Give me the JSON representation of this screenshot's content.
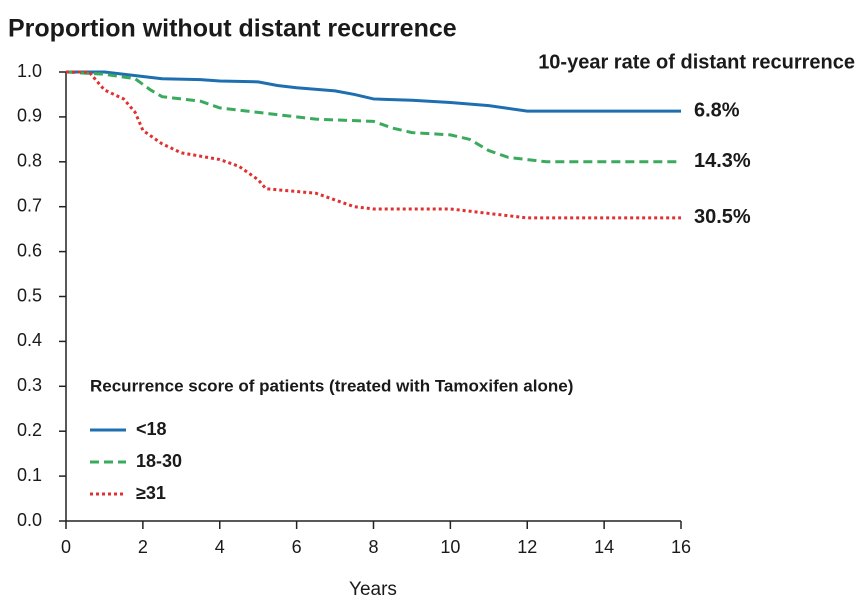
{
  "chart_data": {
    "type": "line",
    "title": "Proportion without distant recurrence",
    "annotation": "10-year rate of distant recurrence",
    "xlabel": "Years",
    "legend_title": "Recurrence score of patients (treated with Tamoxifen alone)",
    "xlim": [
      0,
      16
    ],
    "xticks": [
      0,
      2,
      4,
      6,
      8,
      10,
      12,
      14,
      16
    ],
    "ylim": [
      0,
      1
    ],
    "yticks": [
      {
        "value": 0,
        "label": "0.0"
      },
      0.1,
      0.2,
      0.3,
      0.4,
      0.5,
      0.6,
      0.7,
      0.8,
      0.9,
      {
        "value": 1,
        "label": "1.0"
      }
    ],
    "series": [
      {
        "name": "<18",
        "color": "#1f6fb0",
        "dash": "solid",
        "end_label": "6.8%",
        "x": [
          0,
          1,
          1.5,
          2,
          2.5,
          3.5,
          4,
          5,
          5.5,
          6,
          7,
          7.5,
          8,
          9,
          10,
          11,
          12,
          16
        ],
        "values": [
          1,
          1,
          0.995,
          0.99,
          0.985,
          0.983,
          0.98,
          0.978,
          0.97,
          0.965,
          0.958,
          0.95,
          0.94,
          0.937,
          0.932,
          0.925,
          0.913,
          0.913
        ]
      },
      {
        "name": "18-30",
        "color": "#3aaa5c",
        "dash": "dashed",
        "end_label": "14.3%",
        "x": [
          0,
          1,
          1.8,
          2.2,
          2.5,
          3.5,
          4,
          5,
          6,
          6.5,
          8,
          8.5,
          9,
          10,
          10.5,
          11,
          11.5,
          12,
          12.5,
          16
        ],
        "values": [
          1,
          0.995,
          0.985,
          0.96,
          0.945,
          0.935,
          0.92,
          0.91,
          0.9,
          0.895,
          0.89,
          0.875,
          0.865,
          0.86,
          0.85,
          0.825,
          0.81,
          0.805,
          0.8,
          0.8
        ]
      },
      {
        "name": "≥31",
        "color": "#e03030",
        "dash": "dotted",
        "end_label": "30.5%",
        "x": [
          0,
          0.6,
          0.8,
          1,
          1.5,
          1.8,
          2,
          2.5,
          3,
          4,
          4.5,
          5,
          5.2,
          6.5,
          7,
          7.5,
          8,
          10,
          11,
          11.5,
          12,
          16
        ],
        "values": [
          1,
          1,
          0.98,
          0.96,
          0.94,
          0.91,
          0.87,
          0.84,
          0.82,
          0.805,
          0.79,
          0.76,
          0.74,
          0.73,
          0.715,
          0.7,
          0.695,
          0.695,
          0.685,
          0.68,
          0.675,
          0.675
        ]
      }
    ]
  }
}
